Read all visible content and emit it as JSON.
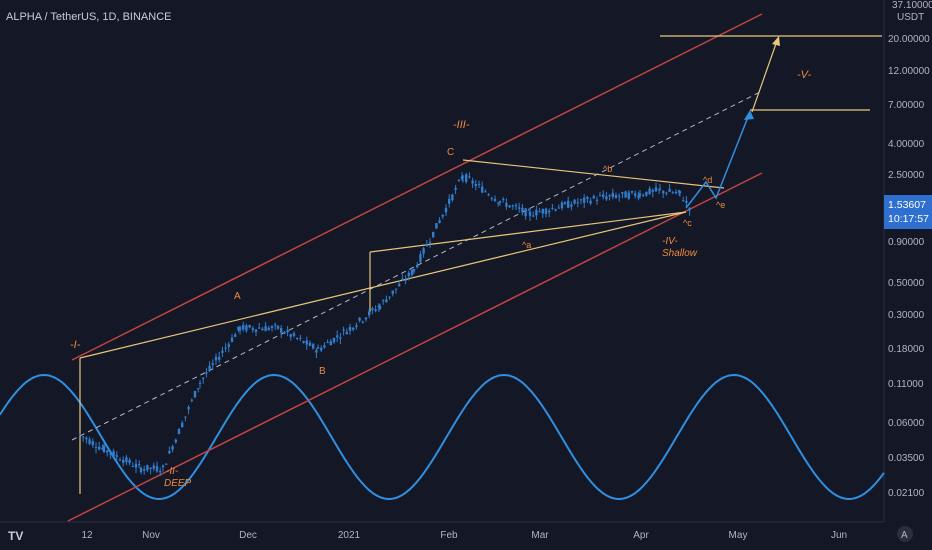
{
  "header": {
    "symbol": "ALPHA / TetherUS, 1D, BINANCE"
  },
  "price_axis": {
    "unit": "USDT",
    "top_partial": "37.10000",
    "ticks": [
      "20.00000",
      "12.00000",
      "7.00000",
      "4.00000",
      "2.50000",
      "1.53607",
      "0.90000",
      "0.50000",
      "0.30000",
      "0.18000",
      "0.11000",
      "0.06000",
      "0.03500",
      "0.02100"
    ],
    "current_price": "1.53607",
    "countdown": "10:17:57"
  },
  "time_axis": {
    "ticks": [
      "12",
      "Nov",
      "Dec",
      "2021",
      "Feb",
      "Mar",
      "Apr",
      "May",
      "Jun"
    ]
  },
  "annotations": {
    "wave_i": "-I-",
    "wave_ii_a": "-II-",
    "wave_ii_b": "DEEP",
    "wave_iii": "-III-",
    "wave_iv_a": "-IV-",
    "wave_iv_b": "Shallow",
    "wave_v": "-V-",
    "A": "A",
    "B": "B",
    "C": "C",
    "a": "^a",
    "b": "^b",
    "c": "^c",
    "d": "^d",
    "e": "^e"
  },
  "footer": {
    "tv_logo": "TV",
    "settings_icon": "A"
  },
  "colors": {
    "background": "#141726",
    "candle": "#2f7ed0",
    "channel": "#c0463f",
    "trendline": "#e8c77a",
    "projection": "#2f8fe0",
    "wave_text": "#f08a3a",
    "label_badge": "#2f6fd0"
  },
  "chart_data": {
    "type": "line",
    "title": "ALPHA / TetherUS, 1D, BINANCE",
    "yscale": "log",
    "ylabel": "USDT",
    "x": [
      "2020-10-12",
      "2020-10-20",
      "2020-11-02",
      "2020-11-10",
      "2020-11-20",
      "2020-12-01",
      "2020-12-10",
      "2020-12-20",
      "2021-01-01",
      "2021-01-10",
      "2021-01-20",
      "2021-02-01",
      "2021-02-10",
      "2021-02-20",
      "2021-03-01",
      "2021-03-10",
      "2021-03-20",
      "2021-04-01",
      "2021-04-10",
      "2021-04-18"
    ],
    "series": [
      {
        "values": [
          0.05,
          0.04,
          0.03,
          0.03,
          0.11,
          0.25,
          0.25,
          0.18,
          0.25,
          0.35,
          0.6,
          2.5,
          1.7,
          1.4,
          1.6,
          1.8,
          1.9,
          2.0,
          1.9,
          1.54
        ]
      }
    ]
  }
}
